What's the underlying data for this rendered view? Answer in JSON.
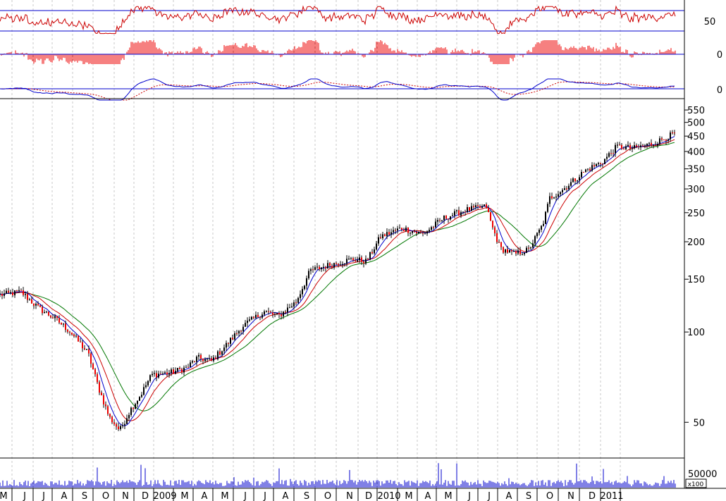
{
  "chart_data": [
    {
      "panel": "rsi",
      "type": "line",
      "yticks": [
        "50"
      ],
      "levels": [
        70,
        30
      ],
      "ylim": [
        20,
        80
      ],
      "colors": {
        "line": "#cc0000",
        "levels": "#0000cc"
      }
    },
    {
      "panel": "histogram",
      "type": "bar",
      "yticks": [
        "0"
      ],
      "colors": {
        "bars": "#ee0000",
        "zero": "#0000cc"
      }
    },
    {
      "panel": "oscillator",
      "type": "line",
      "yticks": [
        "0"
      ],
      "colors": {
        "fast": "#0000cc",
        "slow": "#cc0000",
        "zero": "#0000cc"
      }
    },
    {
      "panel": "price",
      "type": "line",
      "scale": "log",
      "ylim": [
        38,
        600
      ],
      "yticks": [
        "550",
        "500",
        "450",
        "400",
        "350",
        "300",
        "250",
        "200",
        "150",
        "100",
        "50"
      ],
      "ytick_values": [
        550,
        500,
        450,
        400,
        350,
        300,
        250,
        200,
        150,
        100,
        50
      ],
      "series": [
        {
          "role": "price-candles",
          "color": "#000000"
        },
        {
          "role": "ma-short",
          "color": "#0000cc"
        },
        {
          "role": "ma-mid",
          "color": "#cc0000"
        },
        {
          "role": "ma-long",
          "color": "#007700"
        }
      ],
      "price_anchors": [
        [
          0,
          133
        ],
        [
          30,
          136
        ],
        [
          55,
          120
        ],
        [
          80,
          110
        ],
        [
          100,
          100
        ],
        [
          125,
          85
        ],
        [
          140,
          65
        ],
        [
          155,
          52
        ],
        [
          170,
          47
        ],
        [
          185,
          55
        ],
        [
          200,
          62
        ],
        [
          215,
          72
        ],
        [
          240,
          73
        ],
        [
          265,
          76
        ],
        [
          280,
          82
        ],
        [
          300,
          80
        ],
        [
          320,
          90
        ],
        [
          345,
          105
        ],
        [
          375,
          117
        ],
        [
          395,
          113
        ],
        [
          420,
          126
        ],
        [
          440,
          160
        ],
        [
          470,
          168
        ],
        [
          500,
          175
        ],
        [
          520,
          172
        ],
        [
          540,
          208
        ],
        [
          570,
          222
        ],
        [
          600,
          212
        ],
        [
          630,
          240
        ],
        [
          660,
          255
        ],
        [
          690,
          262
        ],
        [
          698,
          225
        ],
        [
          710,
          190
        ],
        [
          730,
          182
        ],
        [
          750,
          188
        ],
        [
          770,
          228
        ],
        [
          780,
          280
        ],
        [
          800,
          300
        ],
        [
          830,
          345
        ],
        [
          855,
          370
        ],
        [
          875,
          415
        ],
        [
          900,
          410
        ],
        [
          930,
          428
        ],
        [
          958,
          460
        ]
      ],
      "months": [
        "M",
        "J",
        "J",
        "A",
        "S",
        "O",
        "N",
        "D",
        "2009",
        "M",
        "A",
        "M",
        "J",
        "J",
        "A",
        "S",
        "O",
        "N",
        "D",
        "2010",
        "M",
        "A",
        "M",
        "J",
        "J",
        "A",
        "S",
        "O",
        "N",
        "D",
        "2011"
      ],
      "grid": "vertical-dashed"
    },
    {
      "panel": "volume",
      "type": "bar",
      "yticks": [
        "50000"
      ],
      "unit_label": "x100",
      "colors": {
        "bars": "#0000cc"
      }
    }
  ]
}
